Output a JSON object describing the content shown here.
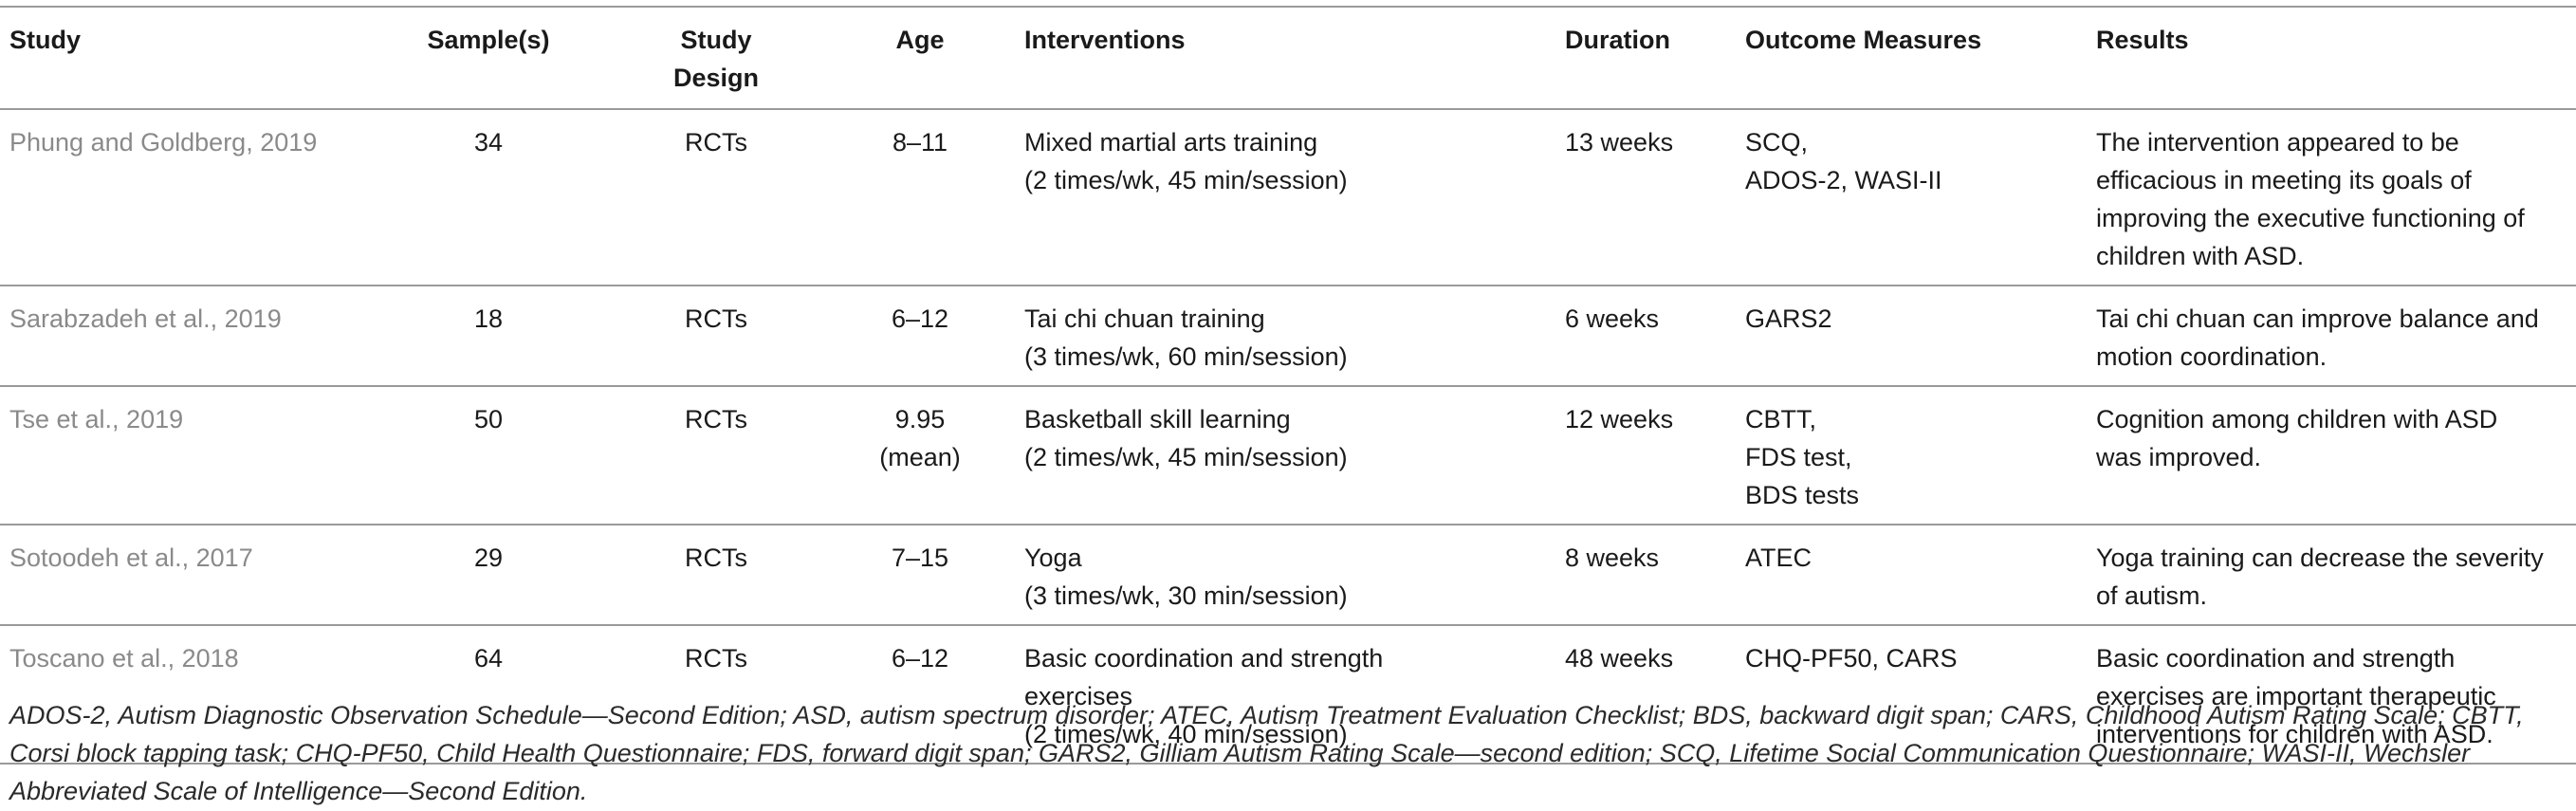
{
  "columns": {
    "study": "Study",
    "samples": "Sample(s)",
    "design": "Study\nDesign",
    "age": "Age",
    "interventions": "Interventions",
    "duration": "Duration",
    "outcomes": "Outcome Measures",
    "results": "Results"
  },
  "rows": [
    {
      "study": "Phung and Goldberg, 2019",
      "samples": "34",
      "design": "RCTs",
      "age": "8–11",
      "interventions": "Mixed martial arts training\n(2 times/wk, 45 min/session)",
      "duration": "13 weeks",
      "outcomes": "SCQ,\nADOS-2, WASI-II",
      "results": "The intervention appeared to be\nefficacious in meeting its goals of\nimproving the executive functioning of\nchildren with ASD."
    },
    {
      "study": "Sarabzadeh et al., 2019",
      "samples": "18",
      "design": "RCTs",
      "age": "6–12",
      "interventions": "Tai chi chuan training\n(3 times/wk, 60 min/session)",
      "duration": "6 weeks",
      "outcomes": "GARS2",
      "results": "Tai chi chuan can improve balance and\nmotion coordination."
    },
    {
      "study": "Tse et al., 2019",
      "samples": "50",
      "design": "RCTs",
      "age": "9.95\n(mean)",
      "interventions": "Basketball skill learning\n(2 times/wk, 45 min/session)",
      "duration": "12 weeks",
      "outcomes": "CBTT,\nFDS test,\nBDS tests",
      "results": "Cognition among children with ASD\nwas improved."
    },
    {
      "study": "Sotoodeh et al., 2017",
      "samples": "29",
      "design": "RCTs",
      "age": "7–15",
      "interventions": "Yoga\n(3 times/wk, 30 min/session)",
      "duration": "8 weeks",
      "outcomes": "ATEC",
      "results": "Yoga training can decrease the severity\nof autism."
    },
    {
      "study": "Toscano et al., 2018",
      "samples": "64",
      "design": "RCTs",
      "age": "6–12",
      "interventions": "Basic coordination and strength\nexercises\n(2 times/wk, 40 min/session)",
      "duration": "48 weeks",
      "outcomes": "CHQ-PF50, CARS",
      "results": "Basic coordination and strength\nexercises are important therapeutic\ninterventions for children with ASD."
    }
  ],
  "footnote": "ADOS-2, Autism Diagnostic Observation Schedule—Second Edition; ASD, autism spectrum disorder; ATEC, Autism Treatment Evaluation Checklist; BDS, backward digit span; CARS, Childhood Autism Rating Scale; CBTT, Corsi block tapping task; CHQ-PF50, Child Health Questionnaire; FDS, forward digit span; GARS2, Gilliam Autism Rating Scale—second edition; SCQ, Lifetime Social Communication Questionnaire; WASI-II, Wechsler Abbreviated Scale of Intelligence—Second Edition."
}
